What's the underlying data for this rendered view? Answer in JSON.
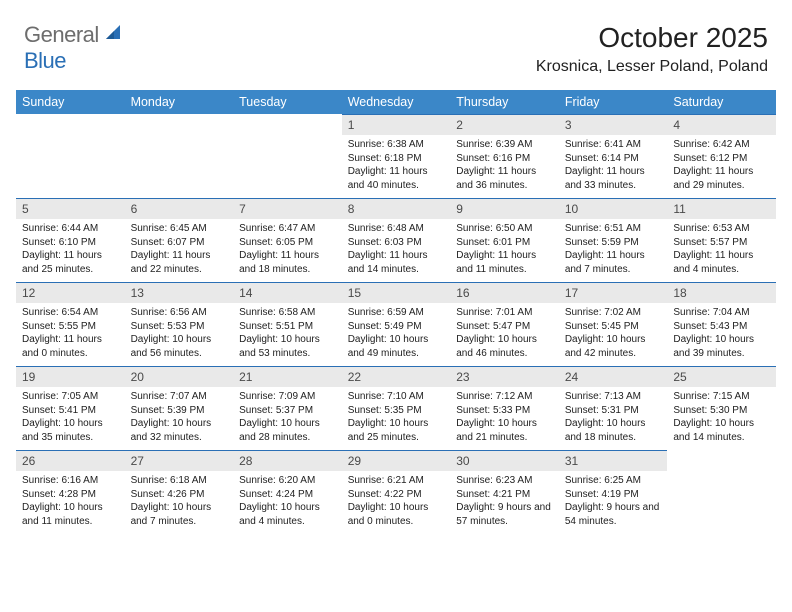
{
  "logo": {
    "text_general": "General",
    "text_blue": "Blue"
  },
  "title": "October 2025",
  "location": "Krosnica, Lesser Poland, Poland",
  "colors": {
    "header_bg": "#3b87c8",
    "header_text": "#ffffff",
    "daynum_bg": "#e9e9e9",
    "daynum_border": "#2a6fb5",
    "body_text": "#212121",
    "logo_gray": "#6d6d6d",
    "logo_blue": "#2a6fb5"
  },
  "weekdays": [
    "Sunday",
    "Monday",
    "Tuesday",
    "Wednesday",
    "Thursday",
    "Friday",
    "Saturday"
  ],
  "weeks": [
    [
      null,
      null,
      null,
      {
        "n": "1",
        "sunrise": "6:38 AM",
        "sunset": "6:18 PM",
        "daylight": "11 hours and 40 minutes."
      },
      {
        "n": "2",
        "sunrise": "6:39 AM",
        "sunset": "6:16 PM",
        "daylight": "11 hours and 36 minutes."
      },
      {
        "n": "3",
        "sunrise": "6:41 AM",
        "sunset": "6:14 PM",
        "daylight": "11 hours and 33 minutes."
      },
      {
        "n": "4",
        "sunrise": "6:42 AM",
        "sunset": "6:12 PM",
        "daylight": "11 hours and 29 minutes."
      }
    ],
    [
      {
        "n": "5",
        "sunrise": "6:44 AM",
        "sunset": "6:10 PM",
        "daylight": "11 hours and 25 minutes."
      },
      {
        "n": "6",
        "sunrise": "6:45 AM",
        "sunset": "6:07 PM",
        "daylight": "11 hours and 22 minutes."
      },
      {
        "n": "7",
        "sunrise": "6:47 AM",
        "sunset": "6:05 PM",
        "daylight": "11 hours and 18 minutes."
      },
      {
        "n": "8",
        "sunrise": "6:48 AM",
        "sunset": "6:03 PM",
        "daylight": "11 hours and 14 minutes."
      },
      {
        "n": "9",
        "sunrise": "6:50 AM",
        "sunset": "6:01 PM",
        "daylight": "11 hours and 11 minutes."
      },
      {
        "n": "10",
        "sunrise": "6:51 AM",
        "sunset": "5:59 PM",
        "daylight": "11 hours and 7 minutes."
      },
      {
        "n": "11",
        "sunrise": "6:53 AM",
        "sunset": "5:57 PM",
        "daylight": "11 hours and 4 minutes."
      }
    ],
    [
      {
        "n": "12",
        "sunrise": "6:54 AM",
        "sunset": "5:55 PM",
        "daylight": "11 hours and 0 minutes."
      },
      {
        "n": "13",
        "sunrise": "6:56 AM",
        "sunset": "5:53 PM",
        "daylight": "10 hours and 56 minutes."
      },
      {
        "n": "14",
        "sunrise": "6:58 AM",
        "sunset": "5:51 PM",
        "daylight": "10 hours and 53 minutes."
      },
      {
        "n": "15",
        "sunrise": "6:59 AM",
        "sunset": "5:49 PM",
        "daylight": "10 hours and 49 minutes."
      },
      {
        "n": "16",
        "sunrise": "7:01 AM",
        "sunset": "5:47 PM",
        "daylight": "10 hours and 46 minutes."
      },
      {
        "n": "17",
        "sunrise": "7:02 AM",
        "sunset": "5:45 PM",
        "daylight": "10 hours and 42 minutes."
      },
      {
        "n": "18",
        "sunrise": "7:04 AM",
        "sunset": "5:43 PM",
        "daylight": "10 hours and 39 minutes."
      }
    ],
    [
      {
        "n": "19",
        "sunrise": "7:05 AM",
        "sunset": "5:41 PM",
        "daylight": "10 hours and 35 minutes."
      },
      {
        "n": "20",
        "sunrise": "7:07 AM",
        "sunset": "5:39 PM",
        "daylight": "10 hours and 32 minutes."
      },
      {
        "n": "21",
        "sunrise": "7:09 AM",
        "sunset": "5:37 PM",
        "daylight": "10 hours and 28 minutes."
      },
      {
        "n": "22",
        "sunrise": "7:10 AM",
        "sunset": "5:35 PM",
        "daylight": "10 hours and 25 minutes."
      },
      {
        "n": "23",
        "sunrise": "7:12 AM",
        "sunset": "5:33 PM",
        "daylight": "10 hours and 21 minutes."
      },
      {
        "n": "24",
        "sunrise": "7:13 AM",
        "sunset": "5:31 PM",
        "daylight": "10 hours and 18 minutes."
      },
      {
        "n": "25",
        "sunrise": "7:15 AM",
        "sunset": "5:30 PM",
        "daylight": "10 hours and 14 minutes."
      }
    ],
    [
      {
        "n": "26",
        "sunrise": "6:16 AM",
        "sunset": "4:28 PM",
        "daylight": "10 hours and 11 minutes."
      },
      {
        "n": "27",
        "sunrise": "6:18 AM",
        "sunset": "4:26 PM",
        "daylight": "10 hours and 7 minutes."
      },
      {
        "n": "28",
        "sunrise": "6:20 AM",
        "sunset": "4:24 PM",
        "daylight": "10 hours and 4 minutes."
      },
      {
        "n": "29",
        "sunrise": "6:21 AM",
        "sunset": "4:22 PM",
        "daylight": "10 hours and 0 minutes."
      },
      {
        "n": "30",
        "sunrise": "6:23 AM",
        "sunset": "4:21 PM",
        "daylight": "9 hours and 57 minutes."
      },
      {
        "n": "31",
        "sunrise": "6:25 AM",
        "sunset": "4:19 PM",
        "daylight": "9 hours and 54 minutes."
      },
      null
    ]
  ],
  "labels": {
    "sunrise": "Sunrise:",
    "sunset": "Sunset:",
    "daylight": "Daylight:"
  }
}
